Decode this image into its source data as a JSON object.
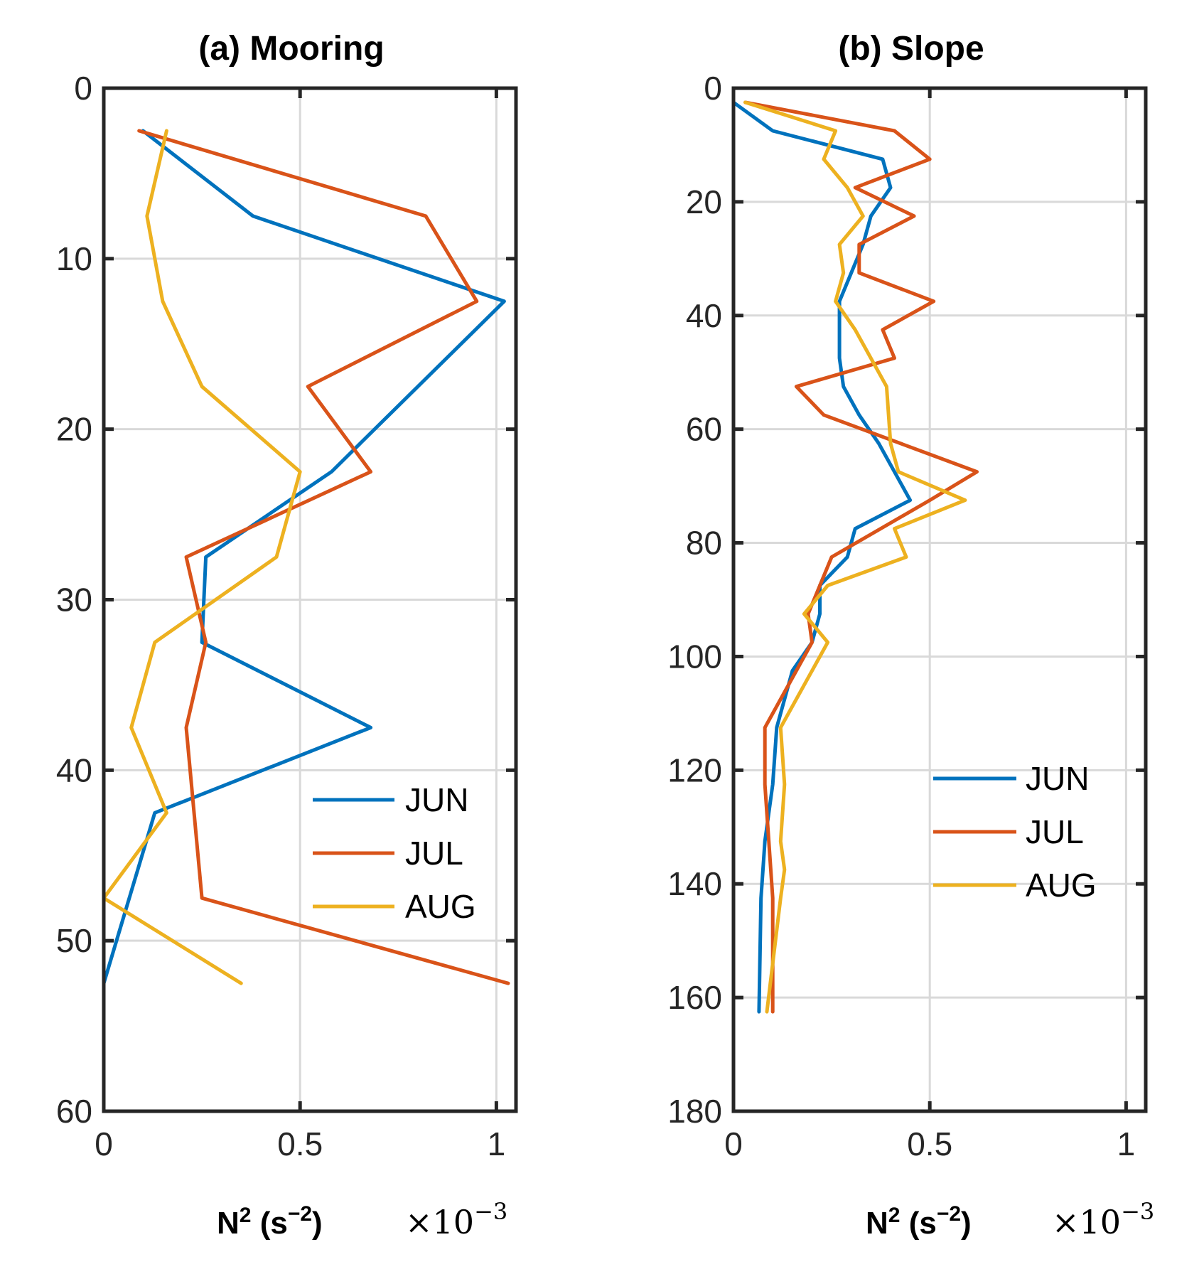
{
  "chart_data": [
    {
      "type": "line",
      "title": "(a) Mooring",
      "xlabel": "N² (s⁻²)",
      "xlabel_parts": {
        "n": "N",
        "sq": "2",
        "open": " (s",
        "sup": "−2",
        "close": ")"
      },
      "multiplier": "×10",
      "multiplier_exp": "−3",
      "xlim": [
        0,
        1.05
      ],
      "ylim": [
        0,
        60
      ],
      "y_reversed": true,
      "xticks": [
        0,
        0.5,
        1
      ],
      "xtick_labels": [
        "0",
        "0.5",
        "1"
      ],
      "yticks": [
        0,
        10,
        20,
        30,
        40,
        50,
        60
      ],
      "ytick_labels": [
        "0",
        "10",
        "20",
        "30",
        "40",
        "50",
        "60"
      ],
      "grid": true,
      "legend": {
        "position": "lower-right",
        "entries": [
          "JUN",
          "JUL",
          "AUG"
        ]
      },
      "series": [
        {
          "name": "JUN",
          "color": "#0072BD",
          "x": [
            0.1,
            0.38,
            1.02,
            0.58,
            0.26,
            0.25,
            0.68,
            0.13,
            0.0
          ],
          "y": [
            2.5,
            7.5,
            12.5,
            22.5,
            27.5,
            32.5,
            37.5,
            42.5,
            52.5
          ]
        },
        {
          "name": "JUL",
          "color": "#D95319",
          "x": [
            0.09,
            0.82,
            0.95,
            0.52,
            0.68,
            0.21,
            0.26,
            0.21,
            0.25,
            1.03
          ],
          "y": [
            2.5,
            7.5,
            12.5,
            17.5,
            22.5,
            27.5,
            32.5,
            37.5,
            47.5,
            52.5
          ]
        },
        {
          "name": "AUG",
          "color": "#EDB120",
          "x": [
            0.16,
            0.11,
            0.15,
            0.25,
            0.5,
            0.44,
            0.13,
            0.07,
            0.16,
            0.0,
            0.35
          ],
          "y": [
            2.5,
            7.5,
            12.5,
            17.5,
            22.5,
            27.5,
            32.5,
            37.5,
            42.5,
            47.5,
            52.5
          ]
        }
      ]
    },
    {
      "type": "line",
      "title": "(b) Slope",
      "xlabel": "N² (s⁻²)",
      "xlabel_parts": {
        "n": "N",
        "sq": "2",
        "open": " (s",
        "sup": "−2",
        "close": ")"
      },
      "multiplier": "×10",
      "multiplier_exp": "−3",
      "xlim": [
        0,
        1.05
      ],
      "ylim": [
        0,
        180
      ],
      "y_reversed": true,
      "xticks": [
        0,
        0.5,
        1
      ],
      "xtick_labels": [
        "0",
        "0.5",
        "1"
      ],
      "yticks": [
        0,
        20,
        40,
        60,
        80,
        100,
        120,
        140,
        160,
        180
      ],
      "ytick_labels": [
        "0",
        "20",
        "40",
        "60",
        "80",
        "100",
        "120",
        "140",
        "160",
        "180"
      ],
      "grid": true,
      "legend": {
        "position": "right",
        "entries": [
          "JUN",
          "JUL",
          "AUG"
        ]
      },
      "series": [
        {
          "name": "JUN",
          "color": "#0072BD",
          "x": [
            0.0,
            0.1,
            0.38,
            0.4,
            0.35,
            0.33,
            0.3,
            0.27,
            0.27,
            0.27,
            0.28,
            0.32,
            0.37,
            0.45,
            0.31,
            0.29,
            0.22,
            0.22,
            0.2,
            0.15,
            0.11,
            0.1,
            0.08,
            0.07,
            0.065
          ],
          "y": [
            2.5,
            7.5,
            12.5,
            17.5,
            22.5,
            27.5,
            32.5,
            37.5,
            42.5,
            47.5,
            52.5,
            57.5,
            62.5,
            72.5,
            77.5,
            82.5,
            87.5,
            92.5,
            97.5,
            102.5,
            112.5,
            122.5,
            132.5,
            142.5,
            162.5
          ]
        },
        {
          "name": "JUL",
          "color": "#D95319",
          "x": [
            0.03,
            0.41,
            0.5,
            0.31,
            0.46,
            0.32,
            0.32,
            0.51,
            0.38,
            0.41,
            0.16,
            0.23,
            0.62,
            0.5,
            0.25,
            0.19,
            0.2,
            0.08,
            0.08,
            0.09,
            0.1,
            0.1
          ],
          "y": [
            2.5,
            7.5,
            12.5,
            17.5,
            22.5,
            27.5,
            32.5,
            37.5,
            42.5,
            47.5,
            52.5,
            57.5,
            67.5,
            72.5,
            82.5,
            92.5,
            97.5,
            112.5,
            122.5,
            132.5,
            142.5,
            162.5
          ]
        },
        {
          "name": "AUG",
          "color": "#EDB120",
          "x": [
            0.03,
            0.26,
            0.23,
            0.29,
            0.33,
            0.27,
            0.28,
            0.26,
            0.31,
            0.39,
            0.4,
            0.42,
            0.59,
            0.41,
            0.44,
            0.24,
            0.18,
            0.24,
            0.12,
            0.13,
            0.12,
            0.13,
            0.12,
            0.085
          ],
          "y": [
            2.5,
            7.5,
            12.5,
            17.5,
            22.5,
            27.5,
            32.5,
            37.5,
            42.5,
            52.5,
            62.5,
            67.5,
            72.5,
            77.5,
            82.5,
            87.5,
            92.5,
            97.5,
            112.5,
            122.5,
            132.5,
            137.5,
            142.5,
            162.5
          ]
        }
      ]
    }
  ]
}
